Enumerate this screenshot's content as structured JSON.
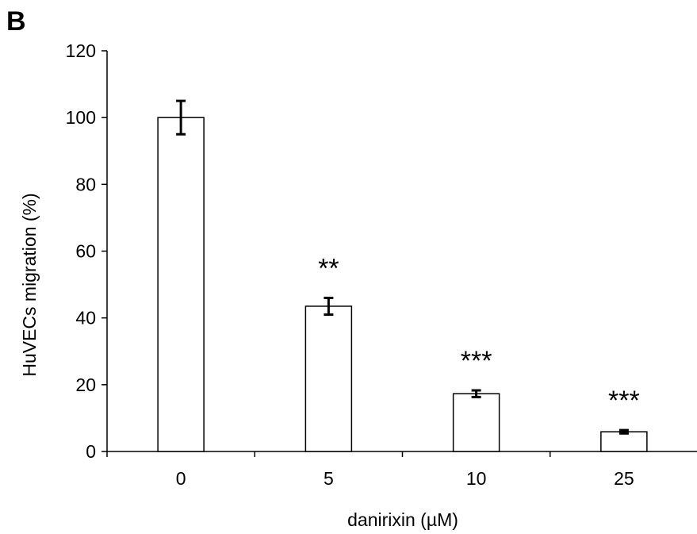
{
  "panel_label": "B",
  "chart_data": {
    "type": "bar",
    "categories": [
      "0",
      "5",
      "10",
      "25"
    ],
    "values": [
      100,
      43.5,
      17.3,
      5.9
    ],
    "errors": [
      5,
      2.5,
      1,
      0.5
    ],
    "significance": [
      "",
      "**",
      "***",
      "***"
    ],
    "title": "",
    "xlabel": "danirixin (µM)",
    "ylabel": "HuVECs migration (%)",
    "ylim": [
      0,
      120
    ],
    "yticks": [
      0,
      20,
      40,
      60,
      80,
      100,
      120
    ],
    "grid": false,
    "bar_fill": "#ffffff",
    "bar_stroke": "#000000"
  }
}
